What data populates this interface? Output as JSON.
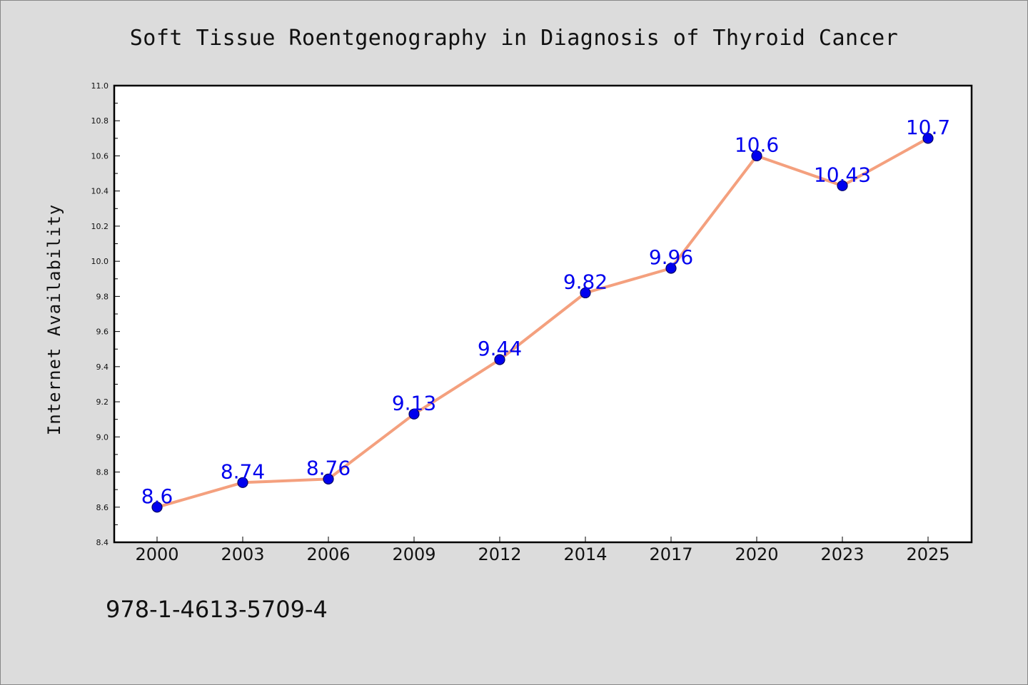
{
  "chart_data": {
    "type": "line",
    "title": "Soft Tissue Roentgenography in Diagnosis of Thyroid Cancer",
    "xlabel": "",
    "ylabel": "Internet Availability",
    "categories": [
      "2000",
      "2003",
      "2006",
      "2009",
      "2012",
      "2014",
      "2017",
      "2020",
      "2023",
      "2025"
    ],
    "series": [
      {
        "values": [
          8.6,
          8.74,
          8.76,
          9.13,
          9.44,
          9.82,
          9.96,
          10.6,
          10.43,
          10.7
        ],
        "data_labels": [
          "8.6",
          "8.74",
          "8.76",
          "9.13",
          "9.44",
          "9.82",
          "9.96",
          "10.6",
          "10.43",
          "10.7"
        ]
      }
    ],
    "ylim": [
      8.4,
      11.0
    ],
    "yticks": [
      "8.4",
      "8.6",
      "8.8",
      "9.0",
      "9.2",
      "9.4",
      "9.6",
      "9.8",
      "10.0",
      "10.2",
      "10.4",
      "10.6",
      "10.8",
      "11.0"
    ],
    "grid": false,
    "legend": "none",
    "colors": {
      "line": "#f4a07e",
      "marker": "#0000ee",
      "marker_edge": "#000066",
      "data_label": "#0000ee",
      "plot_bg": "#ffffff",
      "figure_bg": "#dcdcdc",
      "axes_edge": "#000000"
    }
  },
  "footer": {
    "isbn": "978-1-4613-5709-4"
  }
}
